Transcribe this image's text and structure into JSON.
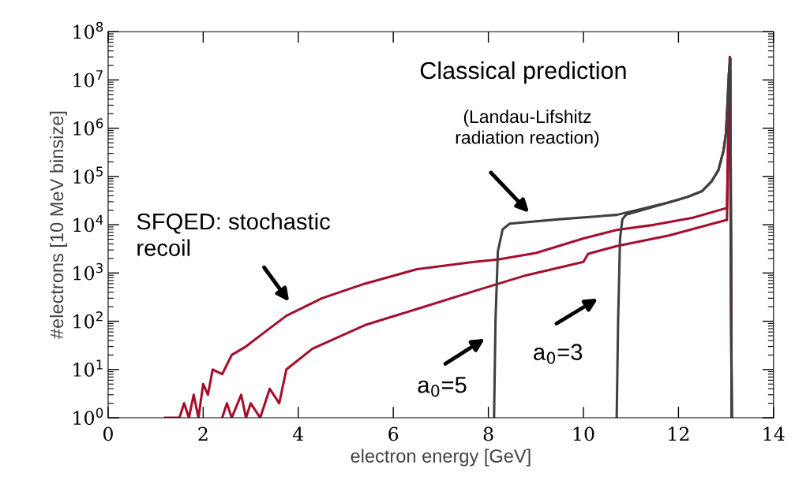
{
  "chart_data": {
    "type": "line",
    "xlabel": "electron energy [GeV]",
    "ylabel": "#electrons [10 MeV binsize]",
    "log": "y",
    "xlim": [
      0,
      14
    ],
    "xticks": [
      0,
      2,
      4,
      6,
      8,
      10,
      12,
      14
    ],
    "ylim": [
      1,
      100000000
    ],
    "yticks": [
      {
        "value": 1,
        "label": "10$^{0}$"
      },
      {
        "value": 10,
        "label": "10$^{1}$"
      },
      {
        "value": 100,
        "label": "10$^{2}$"
      },
      {
        "value": 1000,
        "label": "10$^{3}$"
      },
      {
        "value": 10000,
        "label": "10$^{4}$"
      },
      {
        "value": 100000,
        "label": "10$^{5}$"
      },
      {
        "value": 1000000,
        "label": "10$^{6}$"
      },
      {
        "value": 10000000,
        "label": "10$^{7}$"
      },
      {
        "value": 100000000,
        "label": "10$^{8}$"
      }
    ],
    "grid": false,
    "legend": false,
    "marker": "none",
    "line_style": "solid",
    "series": [
      {
        "color": "#a50f2d",
        "x": [
          1.2,
          1.5,
          1.6,
          1.7,
          1.8,
          1.9,
          2.0,
          2.1,
          2.2,
          2.4,
          2.6,
          2.9,
          3.3,
          3.75,
          4.5,
          5.4,
          6.5,
          7.7,
          8.2,
          9.0,
          10.0,
          10.7,
          11.5,
          12.3,
          13.0,
          13.02,
          13.05,
          13.08,
          13.12
        ],
        "values": [
          1,
          1,
          2,
          1,
          3,
          1,
          5,
          3,
          10,
          8,
          20,
          30,
          60,
          130,
          300,
          600,
          1200,
          1700,
          1900,
          2600,
          5200,
          7800,
          10000,
          14000,
          22000,
          22000,
          1000000,
          30000000,
          1
        ]
      },
      {
        "color": "#a50f2d",
        "x": [
          2.4,
          2.5,
          2.6,
          2.8,
          2.9,
          3.0,
          3.2,
          3.4,
          3.6,
          3.75,
          4.3,
          5.4,
          6.5,
          7.7,
          8.8,
          10.0,
          10.1,
          10.7,
          11.8,
          13.0,
          13.02,
          13.05,
          13.08,
          13.12
        ],
        "values": [
          1,
          2,
          1,
          3,
          1,
          2,
          1,
          4,
          2,
          10,
          27,
          83,
          180,
          420,
          900,
          1700,
          2500,
          3600,
          6000,
          12500,
          12500,
          1000000,
          30000000,
          1
        ]
      },
      {
        "color": "#404040",
        "x": [
          8.12,
          8.15,
          8.2,
          8.3,
          8.45,
          9.5,
          10.7,
          11.8,
          12.2,
          12.5,
          12.7,
          12.84,
          12.95,
          13.0,
          13.03,
          13.06,
          13.09,
          13.12
        ],
        "values": [
          1,
          100,
          2800,
          8000,
          10500,
          13000,
          16000,
          29000,
          38000,
          50000,
          80000,
          135000,
          350000,
          800000,
          3000000,
          13000000,
          28000000,
          1
        ]
      },
      {
        "color": "#404040",
        "x": [
          10.7,
          10.73,
          10.77,
          10.82,
          10.9,
          11.8,
          12.2,
          12.5,
          12.7,
          12.84,
          12.95,
          13.0,
          13.03,
          13.06,
          13.09,
          13.12
        ],
        "values": [
          1,
          100,
          5000,
          13000,
          16200,
          29000,
          38000,
          50000,
          80000,
          135000,
          350000,
          800000,
          3000000,
          13000000,
          28000000,
          1
        ]
      }
    ],
    "annotations": [
      "Classical prediction",
      "(Landau-Lifshitz\nradiation reaction)",
      "SFQED: stochastic\nrecoil",
      "a$_{0}$=5",
      "a$_{0}$=3"
    ]
  }
}
